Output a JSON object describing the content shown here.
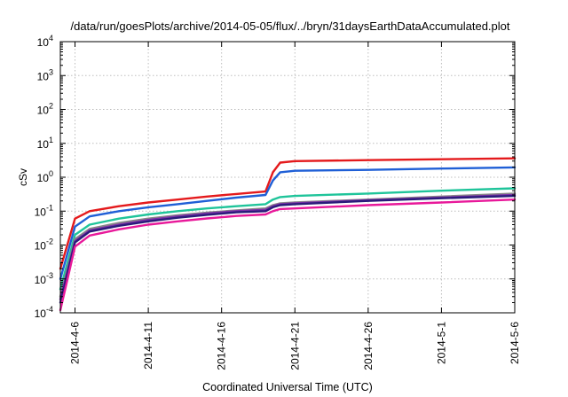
{
  "chart_data": {
    "type": "line",
    "title": "/data/run/goesPlots/archive/2014-05-05/flux/../bryn/31daysEarthDataAccumulated.plot",
    "xlabel": "Coordinated Universal Time (UTC)",
    "ylabel": "cSv",
    "y_scale": "log",
    "ylim": [
      0.0001,
      10000
    ],
    "y_ticks": [
      {
        "value": 0.0001,
        "base": "10",
        "exp": "-4"
      },
      {
        "value": 0.001,
        "base": "10",
        "exp": "-3"
      },
      {
        "value": 0.01,
        "base": "10",
        "exp": "-2"
      },
      {
        "value": 0.1,
        "base": "10",
        "exp": "-1"
      },
      {
        "value": 1,
        "base": "10",
        "exp": "0"
      },
      {
        "value": 10,
        "base": "10",
        "exp": "1"
      },
      {
        "value": 100,
        "base": "10",
        "exp": "2"
      },
      {
        "value": 1000,
        "base": "10",
        "exp": "3"
      },
      {
        "value": 10000,
        "base": "10",
        "exp": "4"
      }
    ],
    "xlim": [
      "2014-04-05",
      "2014-05-06"
    ],
    "x_ticks": [
      "2014-4-6",
      "2014-4-11",
      "2014-4-16",
      "2014-4-21",
      "2014-4-26",
      "2014-5-1",
      "2014-5-6"
    ],
    "grid": true,
    "legend": "none",
    "series": [
      {
        "color": "#e41a1c",
        "points": [
          [
            "2014-04-05",
            0.002
          ],
          [
            "2014-04-06",
            0.06
          ],
          [
            "2014-04-07",
            0.1
          ],
          [
            "2014-04-09",
            0.14
          ],
          [
            "2014-04-11",
            0.18
          ],
          [
            "2014-04-13",
            0.22
          ],
          [
            "2014-04-15",
            0.27
          ],
          [
            "2014-04-17",
            0.32
          ],
          [
            "2014-04-19",
            0.38
          ],
          [
            "2014-04-19.5",
            1.4
          ],
          [
            "2014-04-20",
            2.7
          ],
          [
            "2014-04-21",
            3.0
          ],
          [
            "2014-04-26",
            3.2
          ],
          [
            "2014-05-01",
            3.4
          ],
          [
            "2014-05-06",
            3.6
          ]
        ]
      },
      {
        "color": "#1f5fd6",
        "points": [
          [
            "2014-04-05",
            0.001
          ],
          [
            "2014-04-06",
            0.035
          ],
          [
            "2014-04-07",
            0.07
          ],
          [
            "2014-04-09",
            0.1
          ],
          [
            "2014-04-11",
            0.13
          ],
          [
            "2014-04-13",
            0.16
          ],
          [
            "2014-04-15",
            0.2
          ],
          [
            "2014-04-17",
            0.25
          ],
          [
            "2014-04-19",
            0.3
          ],
          [
            "2014-04-19.5",
            0.8
          ],
          [
            "2014-04-20",
            1.4
          ],
          [
            "2014-04-21",
            1.55
          ],
          [
            "2014-04-26",
            1.65
          ],
          [
            "2014-05-01",
            1.8
          ],
          [
            "2014-05-06",
            1.95
          ]
        ]
      },
      {
        "color": "#1fc49a",
        "points": [
          [
            "2014-04-05",
            0.0005
          ],
          [
            "2014-04-06",
            0.02
          ],
          [
            "2014-04-07",
            0.04
          ],
          [
            "2014-04-09",
            0.06
          ],
          [
            "2014-04-11",
            0.08
          ],
          [
            "2014-04-13",
            0.1
          ],
          [
            "2014-04-15",
            0.12
          ],
          [
            "2014-04-17",
            0.14
          ],
          [
            "2014-04-19",
            0.16
          ],
          [
            "2014-04-19.5",
            0.22
          ],
          [
            "2014-04-20",
            0.26
          ],
          [
            "2014-04-21",
            0.28
          ],
          [
            "2014-04-26",
            0.33
          ],
          [
            "2014-05-01",
            0.4
          ],
          [
            "2014-05-06",
            0.47
          ]
        ]
      },
      {
        "color": "#888888",
        "points": [
          [
            "2014-04-05",
            0.0003
          ],
          [
            "2014-04-06",
            0.015
          ],
          [
            "2014-04-07",
            0.03
          ],
          [
            "2014-04-09",
            0.045
          ],
          [
            "2014-04-11",
            0.06
          ],
          [
            "2014-04-13",
            0.075
          ],
          [
            "2014-04-15",
            0.09
          ],
          [
            "2014-04-17",
            0.105
          ],
          [
            "2014-04-19",
            0.12
          ],
          [
            "2014-04-19.5",
            0.15
          ],
          [
            "2014-04-20",
            0.17
          ],
          [
            "2014-04-21",
            0.18
          ],
          [
            "2014-04-26",
            0.22
          ],
          [
            "2014-05-01",
            0.27
          ],
          [
            "2014-05-06",
            0.33
          ]
        ]
      },
      {
        "color": "#7b2fa8",
        "points": [
          [
            "2014-04-05",
            0.00025
          ],
          [
            "2014-04-06",
            0.013
          ],
          [
            "2014-04-07",
            0.027
          ],
          [
            "2014-04-09",
            0.04
          ],
          [
            "2014-04-11",
            0.055
          ],
          [
            "2014-04-13",
            0.07
          ],
          [
            "2014-04-15",
            0.085
          ],
          [
            "2014-04-17",
            0.1
          ],
          [
            "2014-04-19",
            0.11
          ],
          [
            "2014-04-19.5",
            0.14
          ],
          [
            "2014-04-20",
            0.16
          ],
          [
            "2014-04-21",
            0.17
          ],
          [
            "2014-04-26",
            0.21
          ],
          [
            "2014-05-01",
            0.25
          ],
          [
            "2014-05-06",
            0.3
          ]
        ]
      },
      {
        "color": "#2a1a7a",
        "points": [
          [
            "2014-04-05",
            0.0002
          ],
          [
            "2014-04-06",
            0.012
          ],
          [
            "2014-04-07",
            0.025
          ],
          [
            "2014-04-09",
            0.037
          ],
          [
            "2014-04-11",
            0.05
          ],
          [
            "2014-04-13",
            0.064
          ],
          [
            "2014-04-15",
            0.078
          ],
          [
            "2014-04-17",
            0.092
          ],
          [
            "2014-04-19",
            0.1
          ],
          [
            "2014-04-19.5",
            0.13
          ],
          [
            "2014-04-20",
            0.15
          ],
          [
            "2014-04-21",
            0.16
          ],
          [
            "2014-04-26",
            0.2
          ],
          [
            "2014-05-01",
            0.24
          ],
          [
            "2014-05-06",
            0.28
          ]
        ]
      },
      {
        "color": "#e8199a",
        "points": [
          [
            "2014-04-05",
            0.00012
          ],
          [
            "2014-04-06",
            0.009
          ],
          [
            "2014-04-07",
            0.019
          ],
          [
            "2014-04-09",
            0.029
          ],
          [
            "2014-04-11",
            0.04
          ],
          [
            "2014-04-13",
            0.05
          ],
          [
            "2014-04-15",
            0.061
          ],
          [
            "2014-04-17",
            0.072
          ],
          [
            "2014-04-19",
            0.08
          ],
          [
            "2014-04-19.5",
            0.1
          ],
          [
            "2014-04-20",
            0.115
          ],
          [
            "2014-04-21",
            0.12
          ],
          [
            "2014-04-26",
            0.15
          ],
          [
            "2014-05-01",
            0.18
          ],
          [
            "2014-05-06",
            0.22
          ]
        ]
      }
    ]
  }
}
